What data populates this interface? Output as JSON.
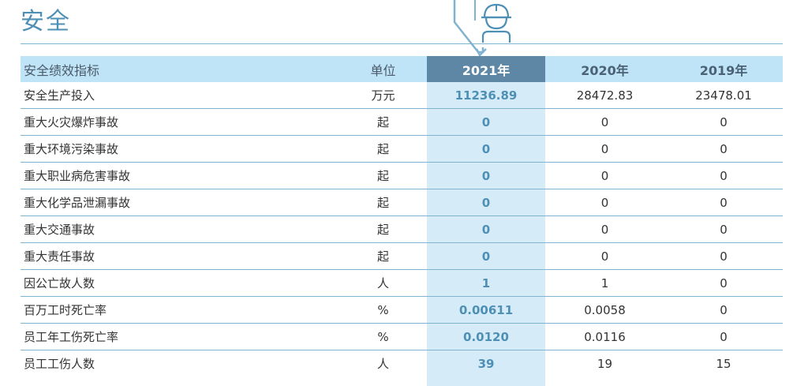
{
  "section_title": "安全",
  "table": {
    "headers": {
      "indicator": "安全绩效指标",
      "unit": "单位",
      "year_2021": "2021年",
      "year_2020": "2020年",
      "year_2019": "2019年"
    },
    "rows": [
      {
        "label": "安全生产投入",
        "unit": "万元",
        "y2021": "11236.89",
        "y2020": "28472.83",
        "y2019": "23478.01"
      },
      {
        "label": "重大火灾爆炸事故",
        "unit": "起",
        "y2021": "0",
        "y2020": "0",
        "y2019": "0"
      },
      {
        "label": "重大环境污染事故",
        "unit": "起",
        "y2021": "0",
        "y2020": "0",
        "y2019": "0"
      },
      {
        "label": "重大职业病危害事故",
        "unit": "起",
        "y2021": "0",
        "y2020": "0",
        "y2019": "0"
      },
      {
        "label": "重大化学品泄漏事故",
        "unit": "起",
        "y2021": "0",
        "y2020": "0",
        "y2019": "0"
      },
      {
        "label": "重大交通事故",
        "unit": "起",
        "y2021": "0",
        "y2020": "0",
        "y2019": "0"
      },
      {
        "label": "重大责任事故",
        "unit": "起",
        "y2021": "0",
        "y2020": "0",
        "y2019": "0"
      },
      {
        "label": "因公亡故人数",
        "unit": "人",
        "y2021": "1",
        "y2020": "1",
        "y2019": "0"
      },
      {
        "label": "百万工时死亡率",
        "unit": "%",
        "y2021": "0.00611",
        "y2020": "0.0058",
        "y2019": "0"
      },
      {
        "label": "员工年工伤死亡率",
        "unit": "%",
        "y2021": "0.0120",
        "y2020": "0.0116",
        "y2019": "0"
      },
      {
        "label": "员工工伤人数",
        "unit": "人",
        "y2021": "39",
        "y2020": "19",
        "y2019": "15"
      }
    ]
  },
  "icon": "safety-helmet-worker-icon",
  "colors": {
    "title": "#4e8fb5",
    "header_bg": "#bfe3f7",
    "current_year_header": "#5e87a6",
    "current_year_column": "#d5ecf8",
    "row_rule": "#7fb3d0"
  }
}
